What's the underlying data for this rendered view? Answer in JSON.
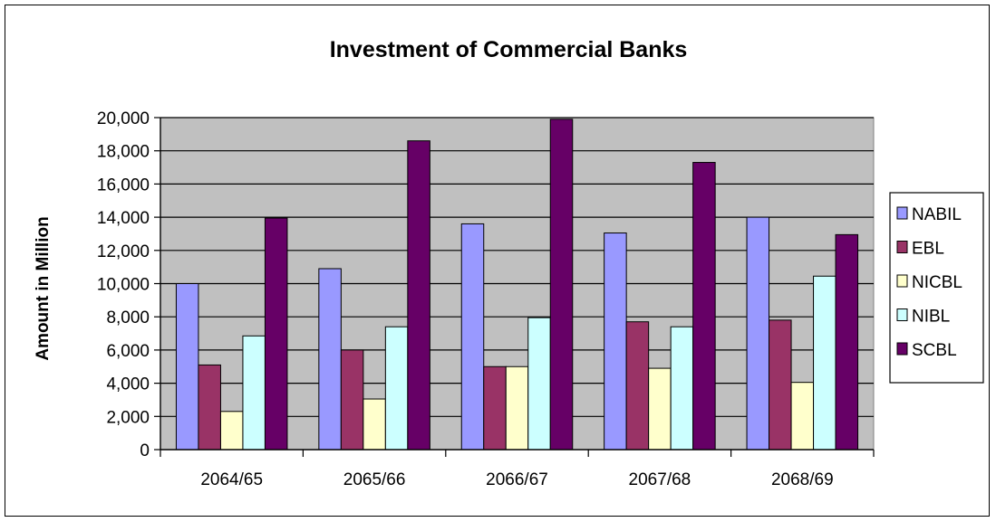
{
  "chart_data": {
    "type": "bar",
    "title": "Investment of Commercial Banks",
    "xlabel": "",
    "ylabel": "Amount in Million",
    "categories": [
      "2064/65",
      "2065/66",
      "2066/67",
      "2067/68",
      "2068/69"
    ],
    "ylim": [
      0,
      20000
    ],
    "ytick_step": 2000,
    "ytick_labels": [
      "0",
      "2,000",
      "4,000",
      "6,000",
      "8,000",
      "10,000",
      "12,000",
      "14,000",
      "16,000",
      "18,000",
      "20,000"
    ],
    "grid": true,
    "plot_background": "#c0c0c0",
    "legend_position": "right",
    "series": [
      {
        "name": "NABIL",
        "color": "#9999ff",
        "values": [
          10000,
          10900,
          13600,
          13050,
          14000
        ]
      },
      {
        "name": "EBL",
        "color": "#993366",
        "values": [
          5100,
          6000,
          5000,
          7700,
          7800
        ]
      },
      {
        "name": "NICBL",
        "color": "#ffffcc",
        "values": [
          2300,
          3050,
          5000,
          4900,
          4050
        ]
      },
      {
        "name": "NIBL",
        "color": "#ccffff",
        "values": [
          6850,
          7400,
          7950,
          7400,
          10450
        ]
      },
      {
        "name": "SCBL",
        "color": "#660066",
        "values": [
          13950,
          18600,
          19900,
          17300,
          12950
        ]
      }
    ]
  }
}
